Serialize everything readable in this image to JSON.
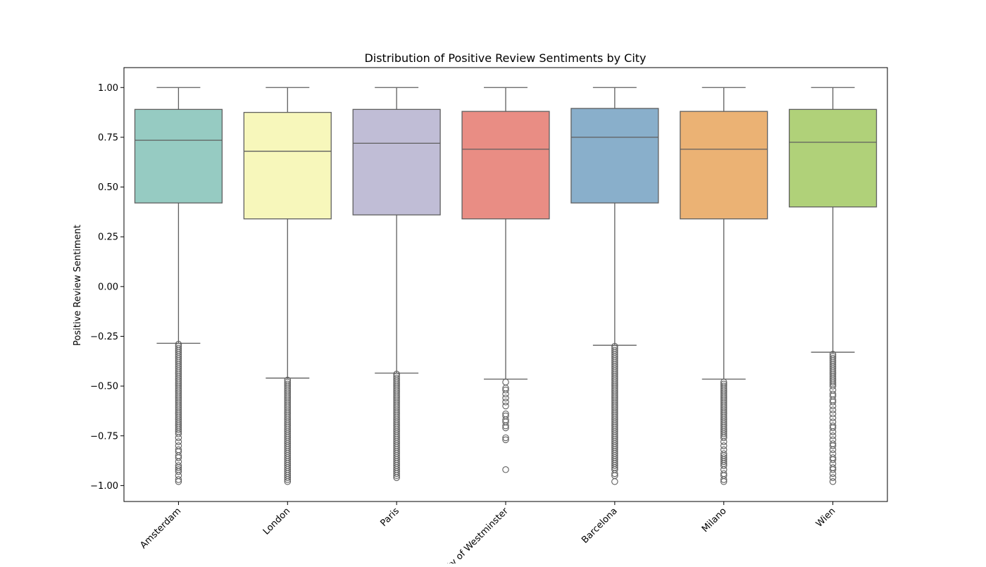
{
  "chart_data": {
    "type": "box",
    "title": "Distribution of Positive Review Sentiments by City",
    "xlabel": "",
    "ylabel": "Positive Review Sentiment",
    "ylim": [
      -1.08,
      1.1
    ],
    "yticks": [
      1.0,
      0.75,
      0.5,
      0.25,
      0.0,
      -0.25,
      -0.5,
      -0.75,
      -1.0
    ],
    "ytick_labels": [
      "1.00",
      "0.75",
      "0.50",
      "0.25",
      "0.00",
      "−0.25",
      "−0.50",
      "−0.75",
      "−1.00"
    ],
    "grid": false,
    "legend": "none",
    "categories": [
      "Amsterdam",
      "London",
      "Paris",
      "City of Westminster",
      "Barcelona",
      "Milano",
      "Wien"
    ],
    "colors": [
      "#96cbc2",
      "#f7f7bb",
      "#c0bdd6",
      "#e98d84",
      "#89afcb",
      "#ebb274",
      "#b0d179"
    ],
    "edge_color": "#5f5f5f",
    "boxes": [
      {
        "whislo": -0.285,
        "q1": 0.42,
        "med": 0.735,
        "q3": 0.89,
        "whishi": 1.0,
        "outliers": [
          -0.29,
          -0.3,
          -0.31,
          -0.32,
          -0.33,
          -0.34,
          -0.35,
          -0.36,
          -0.37,
          -0.38,
          -0.39,
          -0.4,
          -0.41,
          -0.42,
          -0.43,
          -0.44,
          -0.45,
          -0.46,
          -0.47,
          -0.48,
          -0.49,
          -0.5,
          -0.51,
          -0.52,
          -0.53,
          -0.54,
          -0.55,
          -0.56,
          -0.57,
          -0.58,
          -0.59,
          -0.6,
          -0.61,
          -0.62,
          -0.63,
          -0.64,
          -0.65,
          -0.66,
          -0.67,
          -0.68,
          -0.69,
          -0.7,
          -0.71,
          -0.72,
          -0.73,
          -0.74,
          -0.76,
          -0.78,
          -0.8,
          -0.82,
          -0.83,
          -0.85,
          -0.86,
          -0.88,
          -0.9,
          -0.91,
          -0.92,
          -0.93,
          -0.95,
          -0.97,
          -0.98
        ]
      },
      {
        "whislo": -0.46,
        "q1": 0.34,
        "med": 0.68,
        "q3": 0.875,
        "whishi": 1.0,
        "outliers": [
          -0.47,
          -0.48,
          -0.49,
          -0.5,
          -0.51,
          -0.52,
          -0.53,
          -0.54,
          -0.55,
          -0.56,
          -0.57,
          -0.58,
          -0.59,
          -0.6,
          -0.61,
          -0.62,
          -0.63,
          -0.64,
          -0.65,
          -0.66,
          -0.67,
          -0.68,
          -0.69,
          -0.7,
          -0.71,
          -0.72,
          -0.73,
          -0.74,
          -0.75,
          -0.76,
          -0.77,
          -0.78,
          -0.79,
          -0.8,
          -0.81,
          -0.82,
          -0.83,
          -0.84,
          -0.85,
          -0.86,
          -0.87,
          -0.88,
          -0.89,
          -0.9,
          -0.91,
          -0.92,
          -0.93,
          -0.94,
          -0.95,
          -0.96,
          -0.97,
          -0.98
        ]
      },
      {
        "whislo": -0.435,
        "q1": 0.36,
        "med": 0.72,
        "q3": 0.89,
        "whishi": 1.0,
        "outliers": [
          -0.44,
          -0.45,
          -0.46,
          -0.47,
          -0.48,
          -0.49,
          -0.5,
          -0.51,
          -0.52,
          -0.53,
          -0.54,
          -0.55,
          -0.56,
          -0.57,
          -0.58,
          -0.59,
          -0.6,
          -0.61,
          -0.62,
          -0.63,
          -0.64,
          -0.65,
          -0.66,
          -0.67,
          -0.68,
          -0.69,
          -0.7,
          -0.71,
          -0.72,
          -0.73,
          -0.74,
          -0.75,
          -0.76,
          -0.77,
          -0.78,
          -0.79,
          -0.8,
          -0.81,
          -0.82,
          -0.83,
          -0.84,
          -0.85,
          -0.86,
          -0.87,
          -0.88,
          -0.89,
          -0.9,
          -0.91,
          -0.92,
          -0.93,
          -0.94,
          -0.95,
          -0.96
        ]
      },
      {
        "whislo": -0.465,
        "q1": 0.34,
        "med": 0.69,
        "q3": 0.88,
        "whishi": 1.0,
        "outliers": [
          -0.48,
          -0.51,
          -0.52,
          -0.54,
          -0.56,
          -0.58,
          -0.6,
          -0.64,
          -0.65,
          -0.67,
          -0.68,
          -0.7,
          -0.71,
          -0.76,
          -0.77,
          -0.92
        ]
      },
      {
        "whislo": -0.295,
        "q1": 0.42,
        "med": 0.75,
        "q3": 0.895,
        "whishi": 1.0,
        "outliers": [
          -0.3,
          -0.31,
          -0.32,
          -0.33,
          -0.34,
          -0.35,
          -0.36,
          -0.37,
          -0.38,
          -0.39,
          -0.4,
          -0.41,
          -0.42,
          -0.43,
          -0.44,
          -0.45,
          -0.46,
          -0.47,
          -0.48,
          -0.49,
          -0.5,
          -0.51,
          -0.52,
          -0.53,
          -0.54,
          -0.55,
          -0.56,
          -0.57,
          -0.58,
          -0.59,
          -0.6,
          -0.61,
          -0.62,
          -0.63,
          -0.64,
          -0.65,
          -0.66,
          -0.67,
          -0.68,
          -0.69,
          -0.7,
          -0.71,
          -0.72,
          -0.73,
          -0.74,
          -0.75,
          -0.76,
          -0.77,
          -0.78,
          -0.79,
          -0.8,
          -0.81,
          -0.82,
          -0.83,
          -0.84,
          -0.85,
          -0.86,
          -0.87,
          -0.88,
          -0.89,
          -0.9,
          -0.91,
          -0.92,
          -0.94,
          -0.95,
          -0.98
        ]
      },
      {
        "whislo": -0.465,
        "q1": 0.34,
        "med": 0.69,
        "q3": 0.88,
        "whishi": 1.0,
        "outliers": [
          -0.48,
          -0.49,
          -0.5,
          -0.51,
          -0.52,
          -0.53,
          -0.54,
          -0.55,
          -0.56,
          -0.57,
          -0.58,
          -0.59,
          -0.6,
          -0.61,
          -0.62,
          -0.63,
          -0.64,
          -0.65,
          -0.66,
          -0.67,
          -0.68,
          -0.69,
          -0.7,
          -0.71,
          -0.72,
          -0.73,
          -0.74,
          -0.75,
          -0.76,
          -0.78,
          -0.8,
          -0.82,
          -0.84,
          -0.85,
          -0.86,
          -0.87,
          -0.88,
          -0.89,
          -0.9,
          -0.92,
          -0.94,
          -0.95,
          -0.97,
          -0.98
        ]
      },
      {
        "whislo": -0.33,
        "q1": 0.4,
        "med": 0.725,
        "q3": 0.89,
        "whishi": 1.0,
        "outliers": [
          -0.34,
          -0.35,
          -0.36,
          -0.37,
          -0.38,
          -0.39,
          -0.4,
          -0.41,
          -0.42,
          -0.43,
          -0.44,
          -0.45,
          -0.46,
          -0.47,
          -0.48,
          -0.49,
          -0.5,
          -0.52,
          -0.54,
          -0.55,
          -0.57,
          -0.58,
          -0.6,
          -0.62,
          -0.64,
          -0.66,
          -0.68,
          -0.7,
          -0.71,
          -0.73,
          -0.75,
          -0.77,
          -0.79,
          -0.8,
          -0.82,
          -0.84,
          -0.86,
          -0.87,
          -0.89,
          -0.91,
          -0.92,
          -0.94,
          -0.96,
          -0.98
        ]
      }
    ]
  }
}
